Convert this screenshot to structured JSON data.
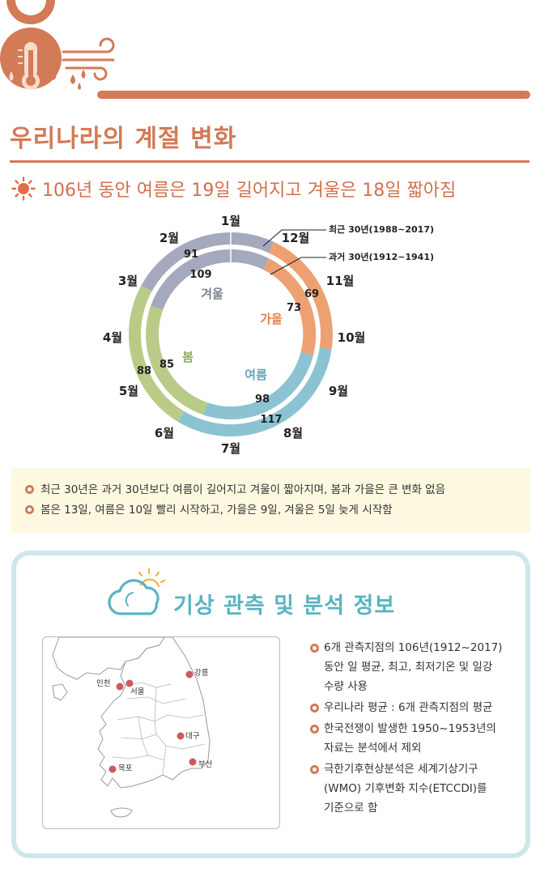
{
  "header": {
    "title": "우리나라의 계절 변화",
    "subtitle": "106년 동안 여름은 19일 길어지고 겨울은 18일 짧아짐"
  },
  "chart_data": {
    "type": "pie",
    "title": "106년 동안 여름은 19일 길어지고 겨울은 18일 짧아짐",
    "months": [
      "1월",
      "2월",
      "3월",
      "4월",
      "5월",
      "6월",
      "7월",
      "8월",
      "9월",
      "10월",
      "11월",
      "12월"
    ],
    "legend": {
      "outer": "최근 30년(1988~2017)",
      "inner": "과거 30년(1912~1941)"
    },
    "series": [
      {
        "name": "최근 30년(1988~2017)",
        "ring": "outer",
        "values": {
          "겨울": 91,
          "봄": 88,
          "여름": 117,
          "가을": 69
        }
      },
      {
        "name": "과거 30년(1912~1941)",
        "ring": "inner",
        "values": {
          "겨울": 109,
          "봄": 85,
          "여름": 98,
          "가을": 73
        }
      }
    ],
    "seasons": [
      "겨울",
      "봄",
      "여름",
      "가을"
    ],
    "colors": {
      "겨울": "#a4a9bd",
      "봄": "#b8cc88",
      "여름": "#8cc3d3",
      "가을": "#eda172"
    }
  },
  "summary": {
    "lines": [
      "최근 30년은 과거 30년보다 여름이 길어지고 겨울이 짧아지며, 봄과 가을은 큰 변화 없음",
      "봄은 13일, 여름은 10일 빨리 시작하고, 가을은 9일, 겨울은 5일 늦게 시작함"
    ]
  },
  "info": {
    "title": "기상 관측 및 분석 정보",
    "stations": [
      "인천",
      "서울",
      "강릉",
      "대구",
      "부산",
      "목포"
    ],
    "notes": [
      [
        "6개 관측지점의 106년(1912~2017)",
        "동안 일 평균, 최고, 최저기온 및 일강",
        "수량 사용"
      ],
      [
        "우리나라 평균 : 6개 관측지점의 평균"
      ],
      [
        "한국전쟁이 발생한 1950~1953년의",
        "자료는 분석에서 제외"
      ],
      [
        "극한기후현상분석은 세계기상기구",
        "(WMO) 기후변화 지수(ETCCDI)를",
        "기준으로 함"
      ]
    ]
  }
}
